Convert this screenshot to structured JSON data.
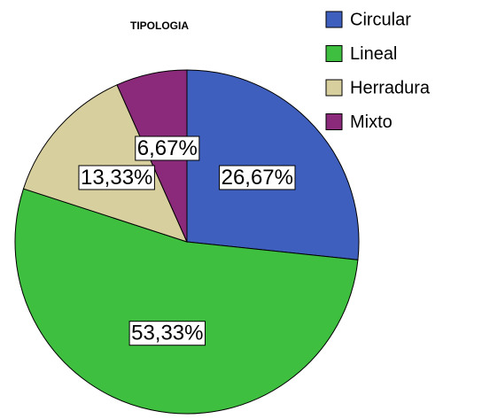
{
  "chart_data": {
    "type": "pie",
    "title": "TIPOLOGIA",
    "categories": [
      "Circular",
      "Lineal",
      "Herradura",
      "Mixto"
    ],
    "values": [
      26.67,
      53.33,
      13.33,
      6.67
    ],
    "value_labels": [
      "26,67%",
      "53,33%",
      "13,33%",
      "6,67%"
    ],
    "colors": [
      "#3f5fbf",
      "#3fbf3f",
      "#d8cf9f",
      "#8b2a7a"
    ],
    "legend": "top-right"
  }
}
